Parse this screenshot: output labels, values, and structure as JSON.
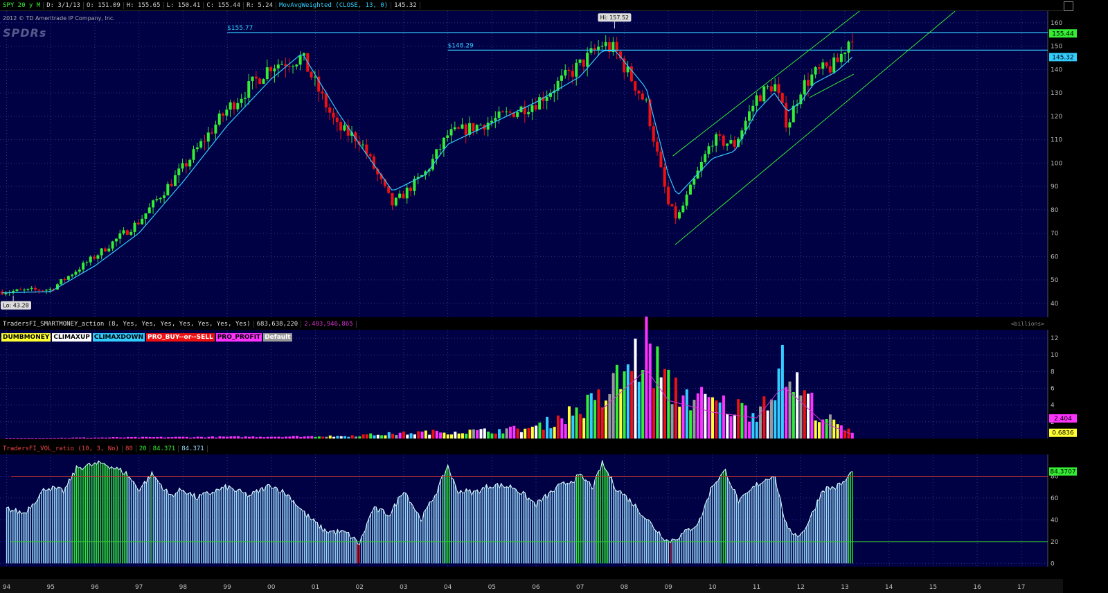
{
  "header": {
    "symbol": "SPY 20 y M",
    "date": "D: 3/1/13",
    "open": "O: 151.09",
    "high": "H: 155.65",
    "low": "L: 150.41",
    "close": "C: 155.44",
    "range": "R: 5.24",
    "study": "MovAvgWeighted (CLOSE, 13, 0)",
    "study_value": "145.32"
  },
  "copyright": "2012 © TD Ameritrade IP Company, Inc.",
  "logo_text": "SPDRs",
  "price_panel": {
    "level_1_label": "$155.77",
    "level_1": 155.77,
    "level_2_label": "$148.29",
    "level_2": 148.29,
    "hi_label": "Hi: 157.52",
    "lo_label": "Lo: 43.28",
    "last_price": "155.44",
    "ma_value": "145.32",
    "y_ticks": [
      40,
      50,
      60,
      70,
      80,
      90,
      100,
      110,
      120,
      130,
      140,
      150,
      160
    ],
    "ylim": [
      34,
      165
    ]
  },
  "volume_panel": {
    "header": "TradersFI_SMARTMONEY_action (8, Yes, Yes, Yes, Yes, Yes, Yes, Yes)",
    "value_1": "683,638,220",
    "value_2": "2,403,946,865",
    "units": "<billions>",
    "legend": [
      {
        "label": "DUMBMONEY",
        "color": "#ffff33"
      },
      {
        "label": "CLIMAXUP",
        "color": "#ffffff"
      },
      {
        "label": "CLIMAXDOWN",
        "color": "#33ccff"
      },
      {
        "label": "PRO_BUY--or--SELL",
        "color": "#ee1111"
      },
      {
        "label": "PRO_PROFIT",
        "color": "#ff33ff"
      },
      {
        "label": "Default",
        "color": "#999999"
      }
    ],
    "y_ticks": [
      2,
      4,
      6,
      8,
      10,
      12
    ],
    "ylim": [
      0,
      13
    ],
    "badge_avg": "2.404",
    "badge_last": "0.6836"
  },
  "ratio_panel": {
    "header": "TradersFI_VOL_ratio (10, 3, No)",
    "v1": "80",
    "v2": "20",
    "v3": "84.371",
    "v4": "84.371",
    "y_ticks": [
      0,
      20,
      40,
      60,
      80
    ],
    "ylim": [
      -3,
      100
    ],
    "upper": 80,
    "lower": 20,
    "badge": "84.3707"
  },
  "x_axis": {
    "labels": [
      "94",
      "95",
      "96",
      "97",
      "98",
      "99",
      "00",
      "01",
      "02",
      "03",
      "04",
      "05",
      "06",
      "07",
      "08",
      "09",
      "10",
      "11",
      "12",
      "13",
      "14",
      "15",
      "16",
      "17"
    ],
    "xlim": [
      1993.85,
      2017.6
    ]
  },
  "colors": {
    "background": "#000044",
    "up": "#33ee33",
    "down": "#ee1111",
    "ma": "#33ccff",
    "level": "#33ccff",
    "channel": "#33ee33",
    "volume_avg": "#cc33cc",
    "ratio_bar": "#99ddff",
    "ratio_hot": "#33ee33",
    "ratio_cold": "#ee1111",
    "upper_line": "#cc3333",
    "lower_line": "#33cc33",
    "badge_price": "#33ee33",
    "badge_ma": "#33ccff",
    "badge_avg": "#ff33ff",
    "badge_last": "#ffff33"
  },
  "chart_data": [
    {
      "type": "candlestick",
      "series": [
        {
          "name": "MovAvgWeighted (CLOSE, 13, 0)"
        }
      ],
      "x": [
        1994.0,
        1995.0,
        1996.0,
        1997.0,
        1998.0,
        1999.0,
        2000.0,
        2000.7,
        2001.5,
        2002.0,
        2002.75,
        2003.5,
        2004.0,
        2005.0,
        2006.0,
        2007.0,
        2007.5,
        2007.8,
        2008.5,
        2009.0,
        2009.2,
        2010.0,
        2010.5,
        2011.0,
        2011.4,
        2011.7,
        2012.0,
        2012.3,
        2012.8,
        2013.17
      ],
      "close": [
        45,
        46,
        60,
        75,
        98,
        123,
        142,
        145,
        115,
        110,
        82,
        96,
        112,
        118,
        126,
        142,
        151,
        148,
        125,
        82,
        76,
        110,
        108,
        128,
        134,
        116,
        132,
        138,
        142,
        155.44
      ],
      "ma": [
        44.5,
        45,
        56,
        70,
        92,
        116,
        136,
        147,
        122,
        108,
        88,
        95,
        108,
        117,
        126,
        137,
        148,
        148,
        132,
        95,
        86,
        102,
        105,
        122,
        130,
        122,
        126,
        134,
        139,
        145.32
      ],
      "levels": [
        155.77,
        148.29
      ],
      "hi": 157.52,
      "lo": 43.28,
      "ylim": [
        34,
        165
      ]
    },
    {
      "type": "bar",
      "name": "TradersFI_SMARTMONEY_action",
      "ylabel": "<billions>",
      "approx_volume": [
        {
          "x": 2001.5,
          "value": 0.3
        },
        {
          "x": 2003.5,
          "value": 0.8
        },
        {
          "x": 2005.0,
          "value": 1.0
        },
        {
          "x": 2006.0,
          "value": 1.4
        },
        {
          "x": 2007.5,
          "value": 5.0
        },
        {
          "x": 2008.5,
          "value": 11.8
        },
        {
          "x": 2009.0,
          "value": 6.5
        },
        {
          "x": 2010.0,
          "value": 4.5
        },
        {
          "x": 2011.0,
          "value": 3.5
        },
        {
          "x": 2011.6,
          "value": 9.0
        },
        {
          "x": 2012.5,
          "value": 2.8
        },
        {
          "x": 2013.17,
          "value": 0.6836
        }
      ],
      "ylim": [
        0,
        13
      ]
    },
    {
      "type": "bar",
      "name": "TradersFI_VOL_ratio",
      "x": [
        1994.0,
        1994.4,
        1994.9,
        1995.3,
        1995.6,
        1996.2,
        1996.7,
        1997.0,
        1997.3,
        1997.7,
        1998.0,
        1998.3,
        1998.7,
        1999.0,
        1999.5,
        2000.0,
        2000.4,
        2000.8,
        2001.2,
        2001.7,
        2002.0,
        2002.3,
        2002.7,
        2003.0,
        2003.4,
        2003.8,
        2004.0,
        2004.2,
        2004.6,
        2005.0,
        2005.5,
        2006.0,
        2006.5,
        2007.0,
        2007.3,
        2007.5,
        2007.8,
        2008.2,
        2008.7,
        2009.0,
        2009.3,
        2009.7,
        2010.0,
        2010.3,
        2010.6,
        2011.0,
        2011.4,
        2011.7,
        2012.0,
        2012.2,
        2012.5,
        2012.8,
        2013.0,
        2013.17
      ],
      "values": [
        50,
        46,
        70,
        66,
        88,
        92,
        83,
        68,
        82,
        62,
        68,
        60,
        66,
        70,
        62,
        72,
        62,
        44,
        30,
        28,
        18,
        50,
        45,
        68,
        40,
        70,
        90,
        67,
        65,
        72,
        70,
        54,
        70,
        80,
        70,
        92,
        70,
        55,
        32,
        20,
        26,
        38,
        72,
        85,
        56,
        72,
        82,
        30,
        26,
        40,
        68,
        70,
        75,
        84.37
      ],
      "ylim": [
        -3,
        100
      ]
    }
  ]
}
